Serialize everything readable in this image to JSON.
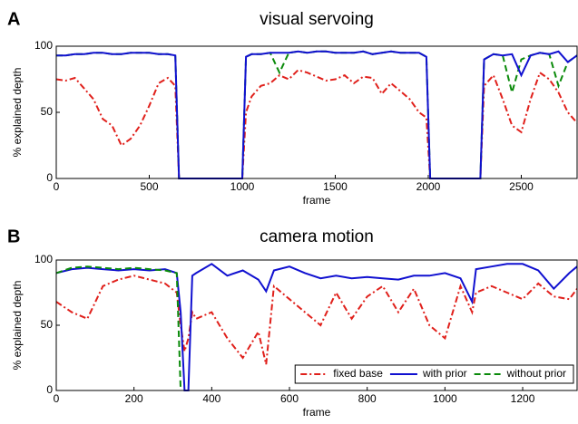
{
  "chart_data": [
    {
      "type": "line",
      "panel_label": "A",
      "title": "visual servoing",
      "xlabel": "frame",
      "ylabel": "% explained depth",
      "xlim": [
        0,
        2800
      ],
      "xticks": [
        0,
        500,
        1000,
        1500,
        2000,
        2500
      ],
      "ylim": [
        0,
        100
      ],
      "yticks": [
        0,
        50,
        100
      ],
      "x": [
        0,
        50,
        100,
        150,
        200,
        250,
        300,
        350,
        400,
        450,
        500,
        550,
        600,
        640,
        660,
        700,
        800,
        900,
        1000,
        1020,
        1050,
        1100,
        1150,
        1200,
        1250,
        1300,
        1350,
        1400,
        1450,
        1500,
        1550,
        1600,
        1650,
        1700,
        1750,
        1800,
        1850,
        1900,
        1950,
        1990,
        2010,
        2100,
        2200,
        2280,
        2300,
        2350,
        2400,
        2450,
        2500,
        2550,
        2600,
        2650,
        2700,
        2750,
        2800
      ],
      "series": [
        {
          "name": "fixed base",
          "color": "#e0201b",
          "linestyle": "dashdot",
          "values": [
            75,
            74,
            76,
            68,
            60,
            45,
            40,
            25,
            30,
            40,
            55,
            72,
            76,
            70,
            0,
            0,
            0,
            0,
            0,
            50,
            62,
            70,
            72,
            78,
            75,
            82,
            80,
            77,
            74,
            75,
            78,
            72,
            77,
            76,
            64,
            72,
            66,
            60,
            50,
            46,
            0,
            0,
            0,
            0,
            70,
            78,
            60,
            40,
            35,
            60,
            80,
            75,
            65,
            50,
            42
          ]
        },
        {
          "name": "without prior",
          "color": "#0a8a0a",
          "linestyle": "dashed",
          "values": [
            93,
            93,
            94,
            94,
            95,
            95,
            94,
            94,
            95,
            95,
            95,
            94,
            94,
            93,
            0,
            0,
            0,
            0,
            0,
            92,
            94,
            94,
            95,
            80,
            95,
            96,
            95,
            96,
            96,
            95,
            95,
            95,
            96,
            94,
            95,
            96,
            95,
            95,
            95,
            92,
            0,
            0,
            0,
            0,
            90,
            94,
            93,
            65,
            90,
            93,
            95,
            94,
            70,
            88,
            93
          ]
        },
        {
          "name": "with prior",
          "color": "#1010d0",
          "linestyle": "solid",
          "values": [
            93,
            93,
            94,
            94,
            95,
            95,
            94,
            94,
            95,
            95,
            95,
            94,
            94,
            93,
            0,
            0,
            0,
            0,
            0,
            92,
            94,
            94,
            95,
            95,
            95,
            96,
            95,
            96,
            96,
            95,
            95,
            95,
            96,
            94,
            95,
            96,
            95,
            95,
            95,
            92,
            0,
            0,
            0,
            0,
            90,
            94,
            93,
            94,
            78,
            93,
            95,
            94,
            96,
            88,
            93
          ]
        }
      ]
    },
    {
      "type": "line",
      "panel_label": "B",
      "title": "camera motion",
      "xlabel": "frame",
      "ylabel": "% explained depth",
      "xlim": [
        0,
        1340
      ],
      "xticks": [
        0,
        200,
        400,
        600,
        800,
        1000,
        1200
      ],
      "ylim": [
        0,
        100
      ],
      "yticks": [
        0,
        50,
        100
      ],
      "legend": "lower right",
      "x": [
        0,
        40,
        80,
        120,
        160,
        200,
        240,
        280,
        310,
        320,
        330,
        340,
        350,
        360,
        400,
        440,
        480,
        520,
        540,
        560,
        600,
        640,
        680,
        720,
        760,
        800,
        840,
        880,
        920,
        960,
        1000,
        1040,
        1070,
        1080,
        1120,
        1160,
        1200,
        1240,
        1280,
        1320,
        1340
      ],
      "series": [
        {
          "name": "fixed base",
          "color": "#e0201b",
          "linestyle": "dashdot",
          "values": [
            68,
            60,
            55,
            80,
            85,
            88,
            85,
            82,
            75,
            50,
            30,
            40,
            60,
            55,
            60,
            40,
            25,
            45,
            20,
            80,
            70,
            60,
            50,
            75,
            55,
            72,
            80,
            60,
            78,
            50,
            40,
            80,
            60,
            75,
            80,
            75,
            70,
            82,
            72,
            70,
            78
          ]
        },
        {
          "name": "with prior",
          "color": "#1010d0",
          "linestyle": "solid",
          "values": [
            90,
            93,
            94,
            93,
            92,
            93,
            92,
            93,
            90,
            60,
            0,
            0,
            88,
            90,
            97,
            88,
            92,
            85,
            76,
            92,
            95,
            90,
            86,
            88,
            86,
            87,
            86,
            85,
            88,
            88,
            90,
            86,
            68,
            93,
            95,
            97,
            97,
            92,
            78,
            90,
            95
          ]
        },
        {
          "name": "without prior",
          "color": "#0a8a0a",
          "linestyle": "dashed",
          "values": [
            90,
            94,
            95,
            94,
            93,
            94,
            93,
            92,
            90,
            0,
            null,
            null,
            null,
            null,
            null,
            null,
            null,
            null,
            null,
            null,
            null,
            null,
            null,
            null,
            null,
            null,
            null,
            null,
            null,
            null,
            null,
            null,
            null,
            null,
            null,
            null,
            null,
            null,
            null,
            null,
            null
          ]
        }
      ]
    }
  ]
}
